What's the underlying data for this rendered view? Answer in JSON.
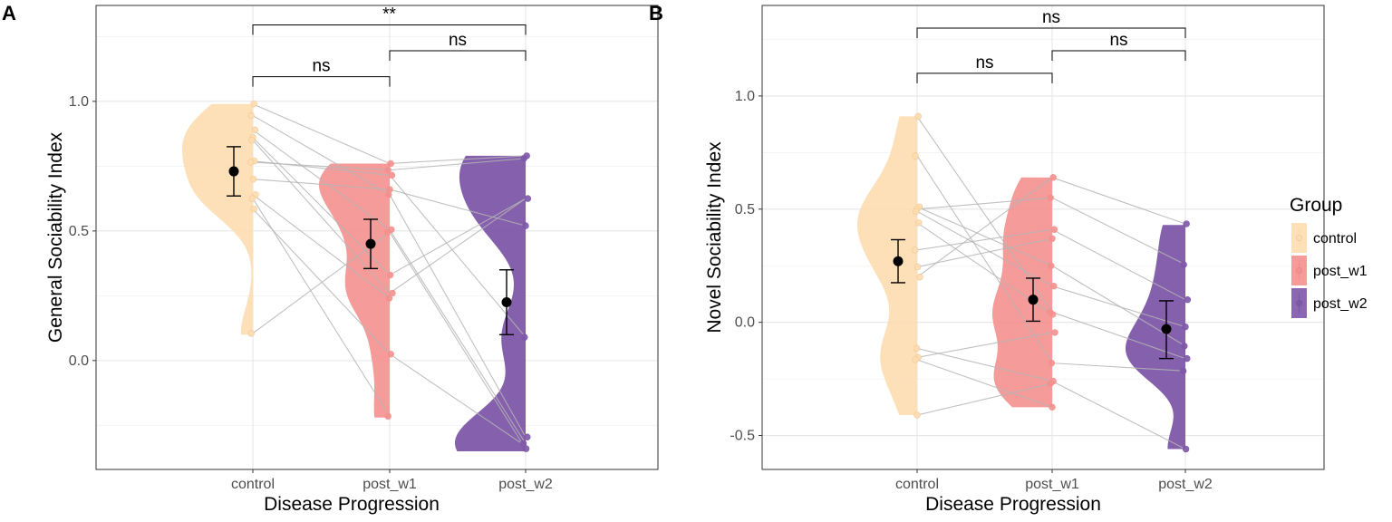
{
  "chart_data": [
    {
      "type": "raincloud",
      "panel_label": "A",
      "xlabel": "Disease Progression",
      "ylabel": "General Sociability Index",
      "categories": [
        "control",
        "post_w1",
        "post_w2"
      ],
      "ylim": [
        -0.42,
        1.37
      ],
      "yticks": [
        0.0,
        0.5,
        1.0
      ],
      "ytick_labels": [
        "0.0",
        "0.5",
        "1.0"
      ],
      "grid": true,
      "groups": [
        {
          "name": "control",
          "color": "#FDDBB0",
          "mean": 0.73,
          "ci_low": 0.635,
          "ci_high": 0.825,
          "range": [
            0.1,
            0.99
          ],
          "points": [
            0.99,
            0.945,
            0.89,
            0.86,
            0.85,
            0.77,
            0.765,
            0.7,
            0.64,
            0.625,
            0.585,
            0.105
          ]
        },
        {
          "name": "post_w1",
          "color": "#F4908E",
          "mean": 0.45,
          "ci_low": 0.355,
          "ci_high": 0.545,
          "range": [
            -0.22,
            0.76
          ],
          "points": [
            0.76,
            0.735,
            0.715,
            0.66,
            0.64,
            0.505,
            0.495,
            0.33,
            0.26,
            0.24,
            0.025,
            -0.215
          ]
        },
        {
          "name": "post_w2",
          "color": "#7E57A8",
          "mean": 0.225,
          "ci_low": 0.1,
          "ci_high": 0.35,
          "range": [
            -0.35,
            0.79
          ],
          "points": [
            0.79,
            0.78,
            0.625,
            0.52,
            0.09,
            -0.295,
            -0.32,
            -0.34
          ]
        }
      ],
      "pairs": [
        [
          0.99,
          0.76
        ],
        [
          0.945,
          0.64
        ],
        [
          0.89,
          0.505
        ],
        [
          0.86,
          0.33
        ],
        [
          0.85,
          0.26
        ],
        [
          0.77,
          0.715
        ],
        [
          0.765,
          0.735
        ],
        [
          0.7,
          0.66
        ],
        [
          0.64,
          0.24
        ],
        [
          0.625,
          -0.215
        ],
        [
          0.585,
          0.025
        ],
        [
          0.105,
          0.495
        ],
        [
          0.76,
          0.79
        ],
        [
          0.735,
          0.78
        ],
        [
          0.715,
          0.09
        ],
        [
          0.66,
          0.52
        ],
        [
          0.64,
          -0.295
        ],
        [
          0.505,
          -0.32
        ],
        [
          0.495,
          -0.34
        ],
        [
          0.33,
          0.625
        ],
        [
          0.26,
          0.625
        ],
        [
          0.025,
          -0.33
        ]
      ],
      "significance": [
        {
          "from": "control",
          "to": "post_w1",
          "label": "ns",
          "y": 1.095
        },
        {
          "from": "post_w1",
          "to": "post_w2",
          "label": "ns",
          "y": 1.195
        },
        {
          "from": "control",
          "to": "post_w2",
          "label": "**",
          "y": 1.295
        }
      ]
    },
    {
      "type": "raincloud",
      "panel_label": "B",
      "xlabel": "Disease Progression",
      "ylabel": "Novel Sociability Index",
      "categories": [
        "control",
        "post_w1",
        "post_w2"
      ],
      "ylim": [
        -0.65,
        1.4
      ],
      "yticks": [
        -0.5,
        0.0,
        0.5,
        1.0
      ],
      "ytick_labels": [
        "-0.5",
        "0.0",
        "0.5",
        "1.0"
      ],
      "grid": true,
      "groups": [
        {
          "name": "control",
          "color": "#FDDBB0",
          "mean": 0.27,
          "ci_low": 0.175,
          "ci_high": 0.365,
          "range": [
            -0.41,
            0.91
          ],
          "points": [
            0.91,
            0.735,
            0.51,
            0.5,
            0.49,
            0.44,
            0.32,
            0.245,
            0.2,
            -0.115,
            -0.155,
            -0.165,
            -0.41
          ]
        },
        {
          "name": "post_w1",
          "color": "#F4908E",
          "mean": 0.1,
          "ci_low": 0.005,
          "ci_high": 0.195,
          "range": [
            -0.375,
            0.64
          ],
          "points": [
            0.64,
            0.55,
            0.41,
            0.37,
            0.25,
            0.16,
            0.045,
            0.035,
            -0.045,
            -0.18,
            -0.26,
            -0.27,
            -0.375
          ]
        },
        {
          "name": "post_w2",
          "color": "#7E57A8",
          "mean": -0.03,
          "ci_low": -0.16,
          "ci_high": 0.095,
          "range": [
            -0.56,
            0.43
          ],
          "points": [
            0.435,
            0.255,
            0.1,
            -0.02,
            -0.105,
            -0.16,
            -0.215,
            -0.56
          ]
        }
      ],
      "pairs": [
        [
          0.91,
          0.045
        ],
        [
          0.735,
          -0.18
        ],
        [
          0.51,
          0.25
        ],
        [
          0.5,
          0.55
        ],
        [
          0.49,
          0.16
        ],
        [
          0.44,
          0.035
        ],
        [
          0.32,
          0.41
        ],
        [
          0.245,
          0.37
        ],
        [
          0.2,
          0.64
        ],
        [
          -0.115,
          -0.26
        ],
        [
          -0.155,
          -0.045
        ],
        [
          -0.165,
          -0.375
        ],
        [
          -0.41,
          -0.27
        ],
        [
          0.64,
          0.435
        ],
        [
          0.55,
          0.255
        ],
        [
          0.41,
          0.1
        ],
        [
          0.25,
          -0.105
        ],
        [
          0.16,
          -0.02
        ],
        [
          0.045,
          -0.16
        ],
        [
          -0.18,
          -0.215
        ],
        [
          -0.26,
          -0.56
        ]
      ],
      "significance": [
        {
          "from": "control",
          "to": "post_w1",
          "label": "ns",
          "y": 1.1
        },
        {
          "from": "post_w1",
          "to": "post_w2",
          "label": "ns",
          "y": 1.2
        },
        {
          "from": "control",
          "to": "post_w2",
          "label": "ns",
          "y": 1.3
        }
      ]
    }
  ],
  "legend": {
    "title": "Group",
    "placement": "right",
    "items": [
      {
        "label": "control",
        "color": "#FDDBB0"
      },
      {
        "label": "post_w1",
        "color": "#F4908E"
      },
      {
        "label": "post_w2",
        "color": "#7E57A8"
      }
    ]
  }
}
